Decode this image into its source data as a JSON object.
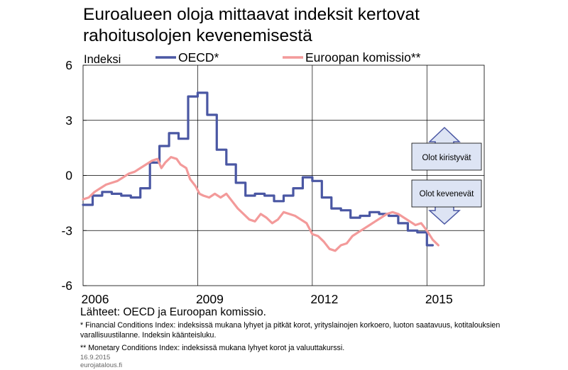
{
  "title_lines": [
    "Euroalueen oloja mittaavat indeksit kertovat",
    "rahoitusolojen kevenemisestä"
  ],
  "chart_data": {
    "type": "line",
    "ylabel": "Indeksi",
    "ylim": [
      -6,
      6
    ],
    "yticks": [
      6,
      3,
      0,
      -3,
      -6
    ],
    "xlim": [
      2006,
      2016.5
    ],
    "xticks": [
      2006,
      2009,
      2012,
      2015
    ],
    "grid": true,
    "legend": "top",
    "series": [
      {
        "name": "OECD*",
        "color": "#4a57a3",
        "step": true,
        "points": [
          [
            2006.0,
            -1.6
          ],
          [
            2006.25,
            -1.1
          ],
          [
            2006.5,
            -0.9
          ],
          [
            2006.75,
            -1.0
          ],
          [
            2007.0,
            -1.1
          ],
          [
            2007.25,
            -1.2
          ],
          [
            2007.5,
            -0.7
          ],
          [
            2007.75,
            0.7
          ],
          [
            2008.0,
            1.6
          ],
          [
            2008.25,
            2.3
          ],
          [
            2008.5,
            2.0
          ],
          [
            2008.75,
            4.3
          ],
          [
            2009.0,
            4.5
          ],
          [
            2009.25,
            3.3
          ],
          [
            2009.5,
            1.4
          ],
          [
            2009.75,
            0.6
          ],
          [
            2010.0,
            -0.4
          ],
          [
            2010.25,
            -1.1
          ],
          [
            2010.5,
            -1.0
          ],
          [
            2010.75,
            -1.1
          ],
          [
            2011.0,
            -1.4
          ],
          [
            2011.25,
            -1.1
          ],
          [
            2011.5,
            -0.7
          ],
          [
            2011.75,
            -0.1
          ],
          [
            2012.0,
            -0.3
          ],
          [
            2012.25,
            -1.2
          ],
          [
            2012.5,
            -1.8
          ],
          [
            2012.75,
            -1.9
          ],
          [
            2013.0,
            -2.3
          ],
          [
            2013.25,
            -2.2
          ],
          [
            2013.5,
            -2.0
          ],
          [
            2013.75,
            -2.1
          ],
          [
            2014.0,
            -2.2
          ],
          [
            2014.25,
            -2.6
          ],
          [
            2014.5,
            -3.0
          ],
          [
            2014.75,
            -3.1
          ],
          [
            2015.0,
            -3.8
          ],
          [
            2015.15,
            -3.8
          ]
        ]
      },
      {
        "name": "Euroopan komissio**",
        "color": "#f39a9a",
        "step": false,
        "points": [
          [
            2006.0,
            -1.3
          ],
          [
            2006.15,
            -1.2
          ],
          [
            2006.3,
            -0.9
          ],
          [
            2006.45,
            -0.7
          ],
          [
            2006.6,
            -0.5
          ],
          [
            2006.75,
            -0.4
          ],
          [
            2006.9,
            -0.3
          ],
          [
            2007.05,
            -0.1
          ],
          [
            2007.2,
            0.1
          ],
          [
            2007.35,
            0.2
          ],
          [
            2007.5,
            0.4
          ],
          [
            2007.65,
            0.6
          ],
          [
            2007.8,
            0.8
          ],
          [
            2007.95,
            0.9
          ],
          [
            2008.05,
            0.4
          ],
          [
            2008.15,
            0.7
          ],
          [
            2008.3,
            1.0
          ],
          [
            2008.45,
            0.9
          ],
          [
            2008.55,
            0.6
          ],
          [
            2008.7,
            0.4
          ],
          [
            2008.8,
            -0.2
          ],
          [
            2008.95,
            -0.6
          ],
          [
            2009.05,
            -1.0
          ],
          [
            2009.15,
            -1.1
          ],
          [
            2009.3,
            -1.2
          ],
          [
            2009.45,
            -1.0
          ],
          [
            2009.6,
            -1.2
          ],
          [
            2009.75,
            -1.0
          ],
          [
            2009.9,
            -1.4
          ],
          [
            2010.05,
            -1.8
          ],
          [
            2010.2,
            -2.1
          ],
          [
            2010.35,
            -2.4
          ],
          [
            2010.5,
            -2.5
          ],
          [
            2010.65,
            -2.1
          ],
          [
            2010.8,
            -2.3
          ],
          [
            2010.95,
            -2.6
          ],
          [
            2011.1,
            -2.4
          ],
          [
            2011.25,
            -2.0
          ],
          [
            2011.4,
            -2.1
          ],
          [
            2011.55,
            -2.2
          ],
          [
            2011.7,
            -2.4
          ],
          [
            2011.85,
            -2.6
          ],
          [
            2012.0,
            -3.2
          ],
          [
            2012.15,
            -3.3
          ],
          [
            2012.3,
            -3.6
          ],
          [
            2012.45,
            -4.0
          ],
          [
            2012.6,
            -4.1
          ],
          [
            2012.75,
            -3.8
          ],
          [
            2012.9,
            -3.7
          ],
          [
            2013.05,
            -3.3
          ],
          [
            2013.2,
            -3.1
          ],
          [
            2013.35,
            -2.9
          ],
          [
            2013.5,
            -2.7
          ],
          [
            2013.65,
            -2.5
          ],
          [
            2013.8,
            -2.3
          ],
          [
            2013.95,
            -2.1
          ],
          [
            2014.1,
            -2.0
          ],
          [
            2014.25,
            -2.1
          ],
          [
            2014.4,
            -2.3
          ],
          [
            2014.55,
            -2.5
          ],
          [
            2014.7,
            -2.7
          ],
          [
            2014.85,
            -2.6
          ],
          [
            2015.0,
            -3.0
          ],
          [
            2015.15,
            -3.5
          ],
          [
            2015.3,
            -3.8
          ]
        ]
      }
    ],
    "annotations": {
      "up_label": "Olot kiristyvät",
      "down_label": "Olot kevenevät"
    }
  },
  "sources": "Lähteet: OECD ja Euroopan komissio.",
  "note1": "* Financial Conditions Index: indeksissä mukana lyhyet ja pitkät korot, yrityslainojen korkoero, luoton saatavuus, kotitalouksien varallisuustilanne. Indeksin käänteisluku.",
  "note2": "** Monetary Conditions Index: indeksissä mukana lyhyet korot ja valuuttakurssi.",
  "date": "16.9.2015",
  "site": "eurojatalous.fi"
}
